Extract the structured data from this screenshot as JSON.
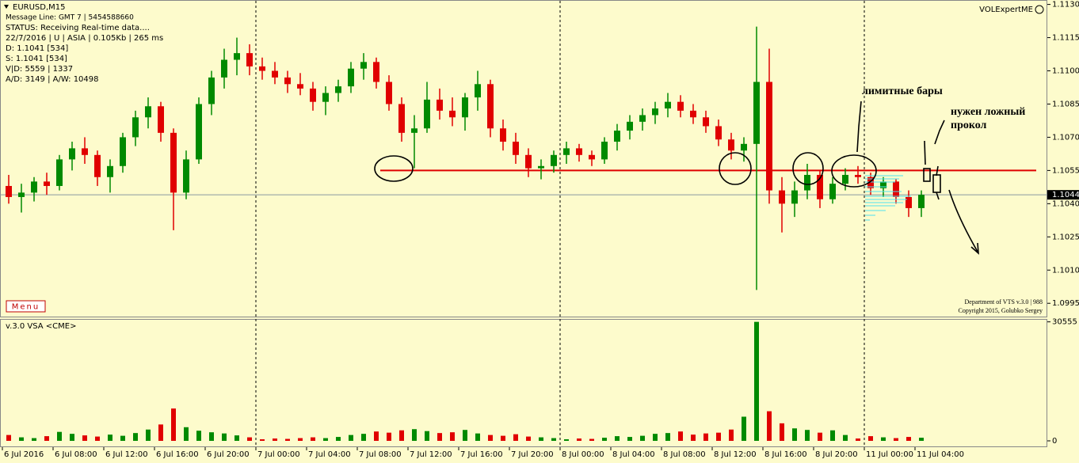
{
  "window": {
    "info": [
      "Message Line: GMT 7 | 5454588660",
      "STATUS:  Receiving Real-time data....",
      "22/7/2016 | U | ASIA | 0.105Kb | 265 ms",
      "D: 1.1041  [534]",
      "S: 1.1041  [534]",
      "V|D: 5559 | 1337",
      "A/D: 3149 | A/W: 10498"
    ],
    "expert": "VOLExpertME",
    "menu": "Menu",
    "footer": [
      "Department of VTS  v.3.0 | 988",
      "Copyright 2015, Golubko Sergey"
    ]
  },
  "annotations": [
    "лимитные бары",
    "нужен ложный",
    "прокол"
  ],
  "chart_data": [
    {
      "type": "candlestick",
      "title": "EURUSD,M15",
      "categories": [
        "6 Jul 2016",
        null,
        null,
        null,
        "6 Jul 08:00",
        null,
        null,
        null,
        "6 Jul 12:00",
        null,
        null,
        null,
        "6 Jul 16:00",
        null,
        null,
        null,
        "6 Jul 20:00",
        null,
        null,
        null,
        "7 Jul 00:00",
        null,
        null,
        null,
        "7 Jul 04:00",
        null,
        null,
        null,
        "7 Jul 08:00",
        null,
        null,
        null,
        "7 Jul 12:00",
        null,
        null,
        null,
        "7 Jul 16:00",
        null,
        null,
        null,
        "7 Jul 20:00",
        null,
        null,
        null,
        "8 Jul 00:00",
        null,
        null,
        null,
        "8 Jul 04:00",
        null,
        null,
        null,
        "8 Jul 08:00",
        null,
        null,
        null,
        "8 Jul 12:00",
        null,
        null,
        null,
        "8 Jul 16:00",
        null,
        null,
        null,
        "8 Jul 20:00",
        null,
        null,
        null,
        "11 Jul 00:00",
        null,
        null,
        null,
        "11 Jul 04:00"
      ],
      "open": [
        1.1048,
        1.1043,
        1.1045,
        1.105,
        1.1048,
        1.106,
        1.1065,
        1.1062,
        1.1052,
        1.1057,
        1.107,
        1.1079,
        1.1084,
        1.1072,
        1.1045,
        1.106,
        1.1085,
        1.1097,
        1.1105,
        1.1108,
        1.1102,
        1.11,
        1.1097,
        1.1094,
        1.1092,
        1.1086,
        1.109,
        1.1093,
        1.1101,
        1.1104,
        1.1095,
        1.1085,
        1.1072,
        1.1074,
        1.1087,
        1.1082,
        1.1079,
        1.1088,
        1.1094,
        1.1074,
        1.1068,
        1.1062,
        1.1056,
        1.1057,
        1.1062,
        1.1065,
        1.1062,
        1.106,
        1.1068,
        1.1073,
        1.1077,
        1.108,
        1.1083,
        1.1086,
        1.1082,
        1.1079,
        1.1075,
        1.1069,
        1.1064,
        1.1067,
        1.1095,
        1.1046,
        1.104,
        1.1046,
        1.1053,
        1.1042,
        1.1049,
        1.1053,
        1.1052,
        1.1047,
        1.105,
        1.1043,
        1.1038
      ],
      "high": [
        1.1053,
        1.1049,
        1.1052,
        1.1054,
        1.1062,
        1.1068,
        1.107,
        1.1064,
        1.106,
        1.1072,
        1.1082,
        1.1088,
        1.1086,
        1.1074,
        1.1064,
        1.1088,
        1.11,
        1.111,
        1.1115,
        1.1112,
        1.1106,
        1.1104,
        1.11,
        1.1099,
        1.1095,
        1.1093,
        1.1096,
        1.1104,
        1.1108,
        1.1106,
        1.1098,
        1.1088,
        1.108,
        1.1095,
        1.1092,
        1.1088,
        1.109,
        1.11,
        1.1096,
        1.1078,
        1.1072,
        1.1065,
        1.106,
        1.1064,
        1.1068,
        1.1067,
        1.1064,
        1.107,
        1.1076,
        1.108,
        1.1083,
        1.1086,
        1.109,
        1.1089,
        1.1085,
        1.1082,
        1.1078,
        1.1072,
        1.107,
        1.112,
        1.111,
        1.1052,
        1.105,
        1.1058,
        1.1055,
        1.1052,
        1.1056,
        1.1057,
        1.1054,
        1.1052,
        1.1051,
        1.1046,
        1.1046
      ],
      "low": [
        1.104,
        1.1036,
        1.1041,
        1.1044,
        1.1046,
        1.1055,
        1.1058,
        1.1048,
        1.1045,
        1.1054,
        1.1066,
        1.1074,
        1.1068,
        1.1028,
        1.1042,
        1.1058,
        1.108,
        1.1092,
        1.1098,
        1.1098,
        1.1096,
        1.1094,
        1.109,
        1.1089,
        1.1082,
        1.108,
        1.1086,
        1.109,
        1.1096,
        1.1092,
        1.1082,
        1.1068,
        1.1056,
        1.1072,
        1.1078,
        1.1075,
        1.1073,
        1.1082,
        1.107,
        1.1064,
        1.1058,
        1.1052,
        1.1051,
        1.1054,
        1.1058,
        1.1059,
        1.1057,
        1.1058,
        1.1064,
        1.1069,
        1.1073,
        1.1076,
        1.1079,
        1.1079,
        1.1076,
        1.1072,
        1.1066,
        1.106,
        1.1059,
        1.1001,
        1.104,
        1.1027,
        1.1034,
        1.1042,
        1.1038,
        1.104,
        1.1046,
        1.1049,
        1.1044,
        1.1043,
        1.104,
        1.1034,
        1.1034
      ],
      "close": [
        1.1043,
        1.1045,
        1.105,
        1.1048,
        1.106,
        1.1065,
        1.1062,
        1.1052,
        1.1057,
        1.107,
        1.1079,
        1.1084,
        1.1072,
        1.1045,
        1.106,
        1.1085,
        1.1097,
        1.1105,
        1.1108,
        1.1102,
        1.11,
        1.1097,
        1.1094,
        1.1092,
        1.1086,
        1.109,
        1.1093,
        1.1101,
        1.1104,
        1.1095,
        1.1085,
        1.1072,
        1.1074,
        1.1087,
        1.1082,
        1.1079,
        1.1088,
        1.1094,
        1.1074,
        1.1068,
        1.1062,
        1.1056,
        1.1057,
        1.1062,
        1.1065,
        1.1062,
        1.106,
        1.1068,
        1.1073,
        1.1077,
        1.108,
        1.1083,
        1.1086,
        1.1082,
        1.1079,
        1.1075,
        1.1069,
        1.1064,
        1.1067,
        1.1095,
        1.1046,
        1.104,
        1.1046,
        1.1053,
        1.1042,
        1.1049,
        1.1053,
        1.1052,
        1.1047,
        1.105,
        1.1043,
        1.1038,
        1.1044
      ],
      "up_color": "#008a00",
      "down_color": "#e00000",
      "ylim": [
        1.0989,
        1.1132
      ],
      "yticks": [
        {
          "value": 1.113,
          "label": "1.1130"
        },
        {
          "value": 1.1115,
          "label": "1.1115"
        },
        {
          "value": 1.11,
          "label": "1.1100"
        },
        {
          "value": 1.1085,
          "label": "1.1085"
        },
        {
          "value": 1.107,
          "label": "1.1070"
        },
        {
          "value": 1.1055,
          "label": "1.1055"
        },
        {
          "value": 1.104,
          "label": "1.1040"
        },
        {
          "value": 1.1025,
          "label": "1.1025"
        },
        {
          "value": 1.101,
          "label": "1.1010"
        },
        {
          "value": 1.0995,
          "label": "1.0995"
        }
      ],
      "last_price": {
        "value": 1.1044,
        "label": "1.1044"
      },
      "level": {
        "value": 1.1055,
        "color": "#e00000"
      },
      "period_separators": true
    },
    {
      "type": "bar",
      "title": "v.3.0 VSA <CME>",
      "values": [
        1500,
        900,
        700,
        1200,
        2300,
        1800,
        1400,
        1100,
        1600,
        1300,
        2000,
        2900,
        4200,
        8300,
        3500,
        2600,
        2200,
        1900,
        1400,
        900,
        400,
        600,
        500,
        700,
        900,
        700,
        1000,
        1500,
        1800,
        2400,
        2100,
        2700,
        3000,
        2500,
        2000,
        2200,
        2800,
        1900,
        1500,
        1300,
        1700,
        1100,
        900,
        700,
        400,
        600,
        500,
        800,
        1200,
        1000,
        1300,
        1800,
        2000,
        2400,
        1600,
        1900,
        2100,
        2900,
        6200,
        30555,
        7600,
        4500,
        3200,
        2800,
        2100,
        2700,
        1500,
        600,
        1200,
        900,
        700,
        1000,
        800
      ],
      "ylim": [
        0,
        31300
      ],
      "yticks": [
        30555,
        0
      ]
    }
  ]
}
